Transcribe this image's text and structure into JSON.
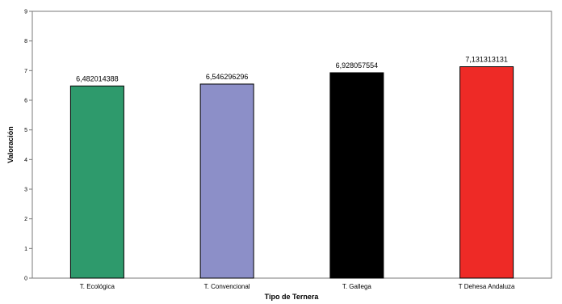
{
  "chart_data": {
    "type": "bar",
    "categories": [
      "T. Ecológica",
      "T. Convencional",
      "T. Gallega",
      "T Dehesa Andaluza"
    ],
    "values": [
      6.482014388,
      6.546296296,
      6.928057554,
      7.131313131
    ],
    "data_labels": [
      "6,482014388",
      "6,546296296",
      "6,928057554",
      "7,131313131"
    ],
    "bar_colors": [
      "#2e9a6c",
      "#8c8fc8",
      "#000000",
      "#ee2a26"
    ],
    "xlabel": "Tipo de Ternera",
    "ylabel": "Valoración",
    "ylim": [
      0,
      9
    ],
    "yticks": [
      0,
      1,
      2,
      3,
      4,
      5,
      6,
      7,
      8,
      9
    ],
    "grid": false,
    "legend": "none"
  }
}
